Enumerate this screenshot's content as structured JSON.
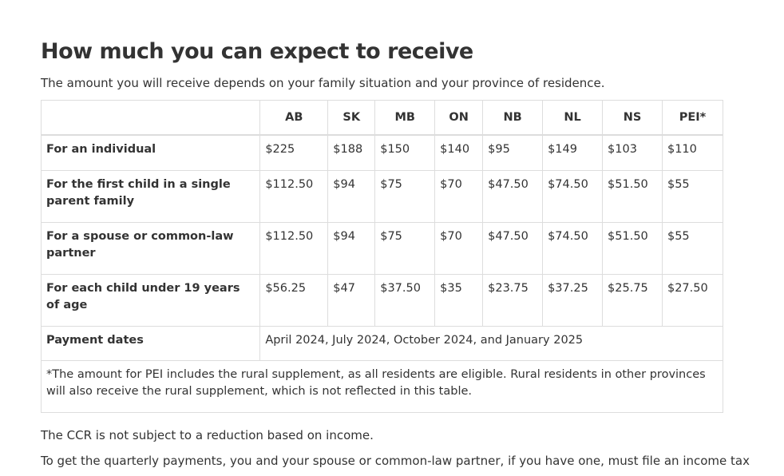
{
  "page": {
    "title": "How much you can expect to receive",
    "intro": "The amount you will receive depends on your family situation and your province of residence.",
    "para1": "The CCR is not subject to a reduction based on income.",
    "para2": "To get the quarterly payments, you and your spouse or common-law partner, if you have one, must file an income tax"
  },
  "table": {
    "headers": [
      "",
      "AB",
      "SK",
      "MB",
      "ON",
      "NB",
      "NL",
      "NS",
      "PEI*"
    ],
    "rows": [
      {
        "label": "For an individual",
        "values": [
          "$225",
          "$188",
          "$150",
          "$140",
          "$95",
          "$149",
          "$103",
          "$110"
        ]
      },
      {
        "label": "For the first child in a single parent family",
        "values": [
          "$112.50",
          "$94",
          "$75",
          "$70",
          "$47.50",
          "$74.50",
          "$51.50",
          "$55"
        ]
      },
      {
        "label": "For a spouse or common-law partner",
        "values": [
          "$112.50",
          "$94",
          "$75",
          "$70",
          "$47.50",
          "$74.50",
          "$51.50",
          "$55"
        ]
      },
      {
        "label": "For each child under 19 years of age",
        "values": [
          "$56.25",
          "$47",
          "$37.50",
          "$35",
          "$23.75",
          "$37.25",
          "$25.75",
          "$27.50"
        ]
      }
    ],
    "payment_dates": {
      "label": "Payment dates",
      "value": "April 2024, July 2024, October 2024, and January 2025"
    },
    "footnote": "*The amount for PEI includes the rural supplement, as all residents are eligible. Rural residents in other provinces will also receive the rural supplement, which is not reflected in this table."
  }
}
